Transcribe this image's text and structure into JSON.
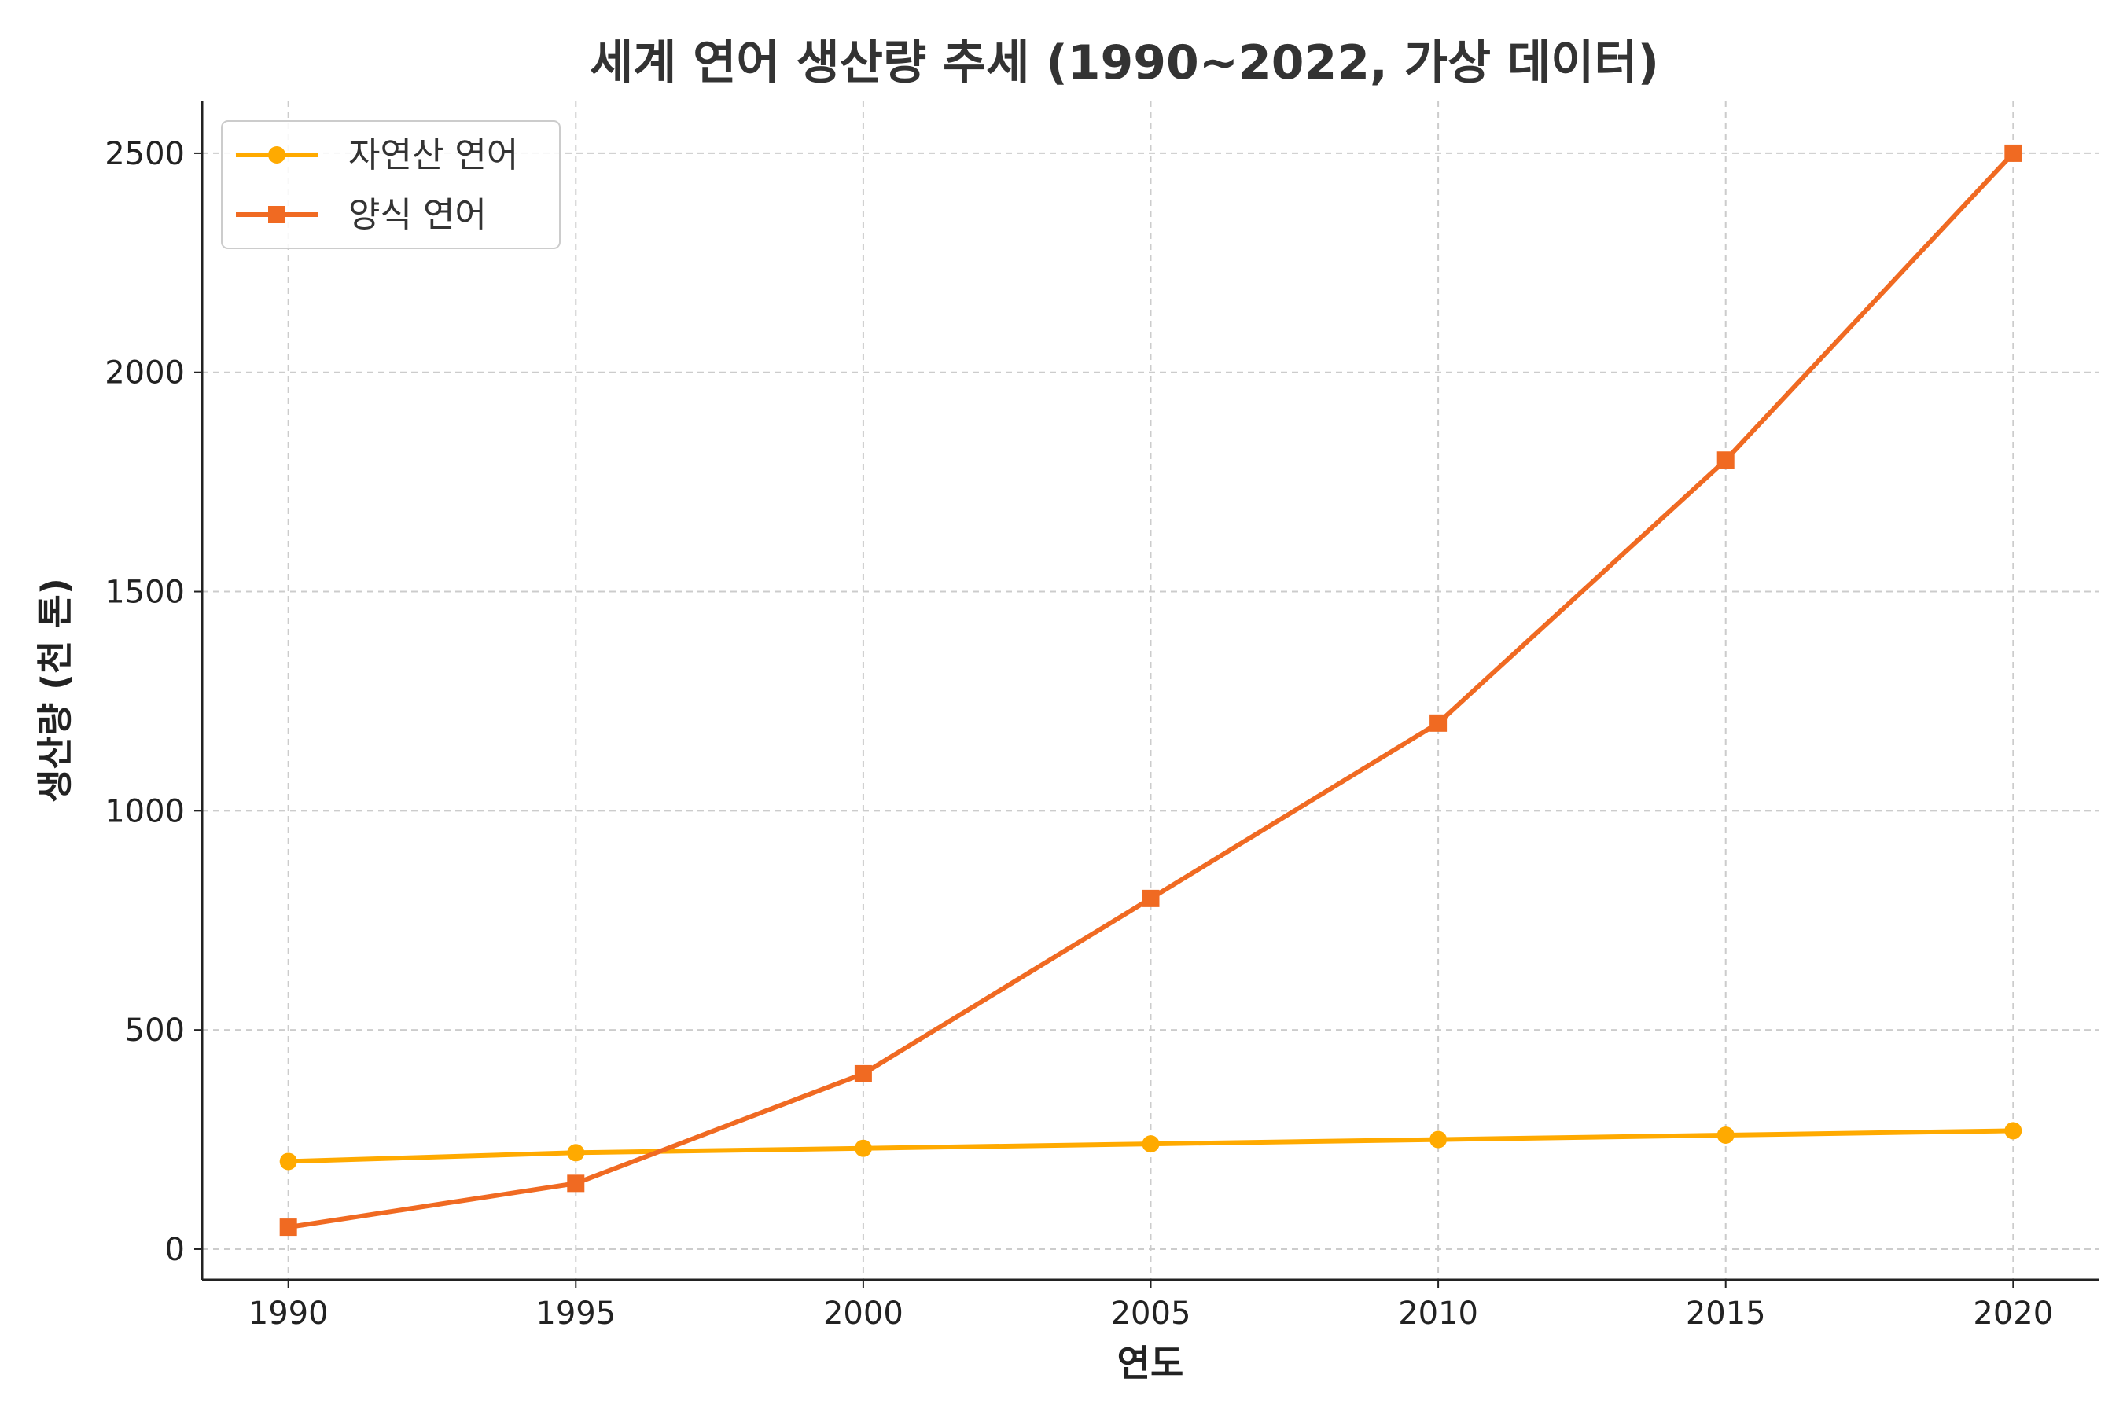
{
  "chart_data": {
    "type": "line",
    "title": "세계 연어 생산량 추세 (1990~2022, 가상 데이터)",
    "xlabel": "연도",
    "ylabel": "생산량 (천 톤)",
    "x": [
      1990,
      1995,
      2000,
      2005,
      2010,
      2015,
      2020
    ],
    "xlim": [
      1988.5,
      2021.5
    ],
    "ylim": [
      -70,
      2620
    ],
    "xticks": [
      1990,
      1995,
      2000,
      2005,
      2010,
      2015,
      2020
    ],
    "yticks": [
      0,
      500,
      1000,
      1500,
      2000,
      2500
    ],
    "grid": true,
    "legend_position": "top-left",
    "series": [
      {
        "name": "자연산 연어",
        "values": [
          200,
          220,
          230,
          240,
          250,
          260,
          270
        ],
        "color": "#FFAA00",
        "marker": "circle"
      },
      {
        "name": "양식 연어",
        "values": [
          50,
          150,
          400,
          800,
          1200,
          1800,
          2500
        ],
        "color": "#F06A22",
        "marker": "square"
      }
    ]
  }
}
